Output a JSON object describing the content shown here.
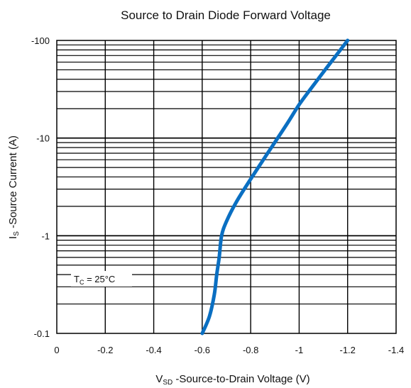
{
  "chart_data": {
    "type": "line",
    "title": "Source to Drain Diode Forward Voltage",
    "xlabel_main": "V",
    "xlabel_sub": "SD",
    "xlabel_rest": " -Source-to-Drain Voltage (V)",
    "ylabel_main": "I",
    "ylabel_sub": "S",
    "ylabel_rest": " -Source Current (A)",
    "x_scale": "linear",
    "y_scale": "log",
    "xlim": [
      0,
      -1.4
    ],
    "ylim": [
      -0.1,
      -100
    ],
    "grid": true,
    "x_ticks": [
      "0",
      "-0.2",
      "-0.4",
      "-0.6",
      "-0.8",
      "-1",
      "-1.2",
      "-1.4"
    ],
    "x_tick_values": [
      0,
      -0.2,
      -0.4,
      -0.6,
      -0.8,
      -1,
      -1.2,
      -1.4
    ],
    "y_ticks": [
      "-0.1",
      "-1",
      "-10",
      "-100"
    ],
    "y_tick_values": [
      -0.1,
      -1,
      -10,
      -100
    ],
    "annotation_main": "T",
    "annotation_sub": "C",
    "annotation_rest": " = 25°C",
    "series": [
      {
        "color": "#0a6fc2",
        "x": [
          -0.6,
          -0.63,
          -0.65,
          -0.66,
          -0.67,
          -0.68,
          -0.7,
          -0.74,
          -0.8,
          -0.87,
          -0.95,
          -1.0,
          -1.06,
          -1.12,
          -1.2
        ],
        "y": [
          -0.1,
          -0.15,
          -0.25,
          -0.4,
          -0.6,
          -1.0,
          -1.4,
          -2.2,
          -3.8,
          -7.0,
          -14.0,
          -22.0,
          -35.0,
          -55.0,
          -100.0
        ]
      }
    ]
  }
}
